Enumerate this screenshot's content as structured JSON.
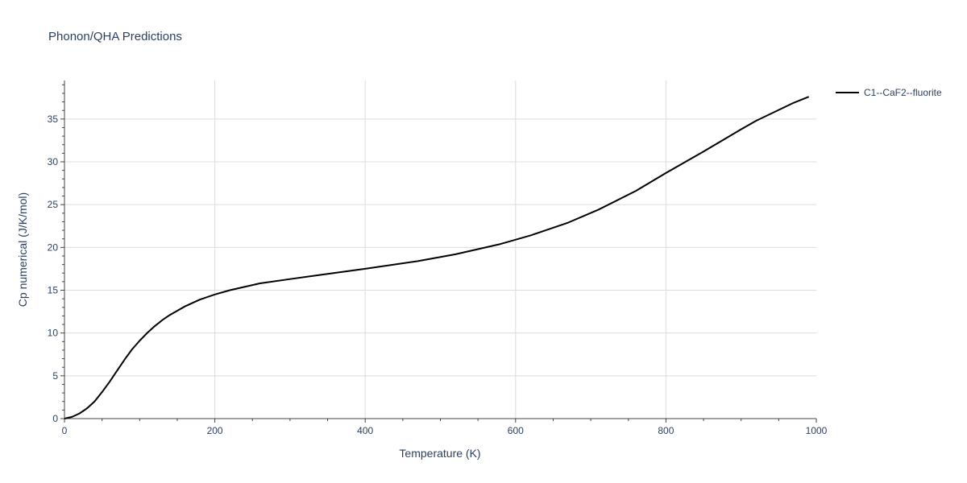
{
  "chart_data": {
    "type": "line",
    "title": "Phonon/QHA Predictions",
    "xlabel": "Temperature (K)",
    "ylabel": "Cp numerical (J/K/mol)",
    "xlim": [
      0,
      1000
    ],
    "ylim": [
      0,
      39.5
    ],
    "x_ticks": [
      0,
      200,
      400,
      600,
      800,
      1000
    ],
    "x_tick_labels": [
      "0",
      "200",
      "400",
      "600",
      "800",
      "1000"
    ],
    "y_ticks": [
      0,
      5,
      10,
      15,
      20,
      25,
      30,
      35
    ],
    "y_tick_labels": [
      "0",
      "5",
      "10",
      "15",
      "20",
      "25",
      "30",
      "35"
    ],
    "grid": true,
    "legend_position": "top-right",
    "series": [
      {
        "name": "C1--CaF2--fluorite",
        "color": "#000000",
        "x": [
          0,
          10,
          20,
          30,
          40,
          50,
          60,
          70,
          80,
          90,
          100,
          110,
          120,
          130,
          140,
          160,
          180,
          200,
          220,
          260,
          300,
          350,
          400,
          470,
          520,
          580,
          620,
          670,
          710,
          760,
          800,
          850,
          900,
          920,
          970,
          990
        ],
        "y": [
          0,
          0.2,
          0.6,
          1.2,
          2.0,
          3.1,
          4.3,
          5.6,
          6.9,
          8.1,
          9.1,
          10.0,
          10.8,
          11.5,
          12.1,
          13.1,
          13.9,
          14.5,
          15.0,
          15.8,
          16.3,
          16.9,
          17.5,
          18.4,
          19.2,
          20.4,
          21.4,
          22.9,
          24.4,
          26.6,
          28.7,
          31.2,
          33.8,
          34.8,
          36.9,
          37.6
        ]
      }
    ]
  }
}
